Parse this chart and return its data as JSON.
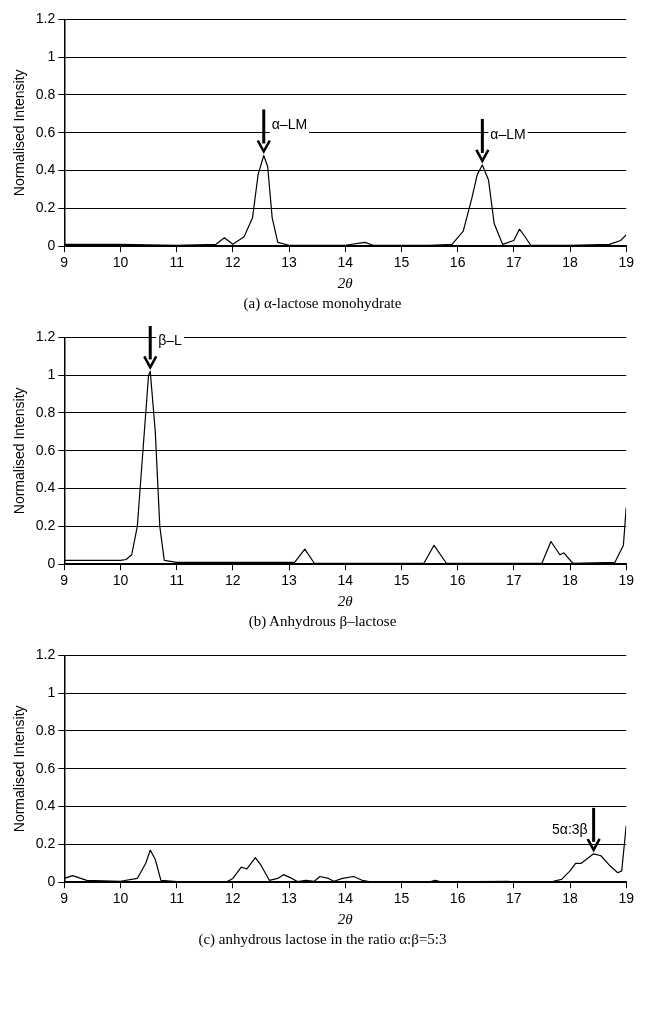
{
  "chart_data": [
    {
      "type": "line",
      "xlabel": "2θ",
      "ylabel": "Normalised Intensity",
      "xlim": [
        9,
        19
      ],
      "xticks": [
        9,
        10,
        11,
        12,
        13,
        14,
        15,
        16,
        17,
        18,
        19
      ],
      "ylim": [
        0,
        1.2
      ],
      "yticks": [
        0,
        0.2,
        0.4,
        0.6,
        0.8,
        1,
        1.2
      ],
      "grid": "y",
      "marker": "none",
      "line_style": "solid",
      "series": [
        {
          "color": "#000000",
          "x": [
            9,
            10,
            11,
            11.7,
            11.85,
            12.0,
            12.2,
            12.35,
            12.45,
            12.55,
            12.62,
            12.7,
            12.8,
            13,
            14,
            14.35,
            14.5,
            15.5,
            15.9,
            16.1,
            16.25,
            16.35,
            16.44,
            16.55,
            16.65,
            16.8,
            17.0,
            17.1,
            17.2,
            17.3,
            18,
            18.7,
            18.9,
            19
          ],
          "values": [
            0.01,
            0.01,
            0.005,
            0.01,
            0.045,
            0.01,
            0.05,
            0.15,
            0.38,
            0.48,
            0.42,
            0.15,
            0.02,
            0.005,
            0.005,
            0.02,
            0.005,
            0.005,
            0.01,
            0.08,
            0.25,
            0.38,
            0.43,
            0.35,
            0.12,
            0.01,
            0.03,
            0.09,
            0.05,
            0.005,
            0.005,
            0.01,
            0.03,
            0.06
          ]
        }
      ],
      "annotations": [
        {
          "text": "α–LM",
          "x": 12.55,
          "y": 0.48
        },
        {
          "text": "α–LM",
          "x": 16.44,
          "y": 0.43
        },
        "(a)  α-lactose monohydrate"
      ]
    },
    {
      "type": "line",
      "xlabel": "2θ",
      "ylabel": "Normalised Intensity",
      "xlim": [
        9,
        19
      ],
      "xticks": [
        9,
        10,
        11,
        12,
        13,
        14,
        15,
        16,
        17,
        18,
        19
      ],
      "ylim": [
        0,
        1.2
      ],
      "yticks": [
        0,
        0.2,
        0.4,
        0.6,
        0.8,
        1,
        1.2
      ],
      "grid": "y",
      "marker": "none",
      "line_style": "solid",
      "series": [
        {
          "color": "#000000",
          "x": [
            9,
            10,
            10.1,
            10.2,
            10.3,
            10.4,
            10.5,
            10.53,
            10.62,
            10.7,
            10.78,
            11,
            13.1,
            13.28,
            13.45,
            15.4,
            15.58,
            15.8,
            17.5,
            17.66,
            17.82,
            17.89,
            18.05,
            18.8,
            18.95,
            19
          ],
          "values": [
            0.02,
            0.02,
            0.025,
            0.05,
            0.2,
            0.6,
            1.0,
            1.02,
            0.7,
            0.2,
            0.02,
            0.01,
            0.01,
            0.08,
            0.005,
            0.005,
            0.1,
            0.005,
            0.005,
            0.12,
            0.05,
            0.06,
            0.005,
            0.01,
            0.1,
            0.3
          ]
        }
      ],
      "annotations": [
        {
          "text": "β–L",
          "x": 10.53,
          "y": 1.02
        },
        "(b)  Anhydrous β–lactose"
      ]
    },
    {
      "type": "line",
      "xlabel": "2θ",
      "ylabel": "Normalised Intensity",
      "xlim": [
        9,
        19
      ],
      "xticks": [
        9,
        10,
        11,
        12,
        13,
        14,
        15,
        16,
        17,
        18,
        19
      ],
      "ylim": [
        0,
        1.2
      ],
      "yticks": [
        0,
        0.2,
        0.4,
        0.6,
        0.8,
        1,
        1.2
      ],
      "grid": "y",
      "marker": "none",
      "line_style": "solid",
      "series": [
        {
          "color": "#000000",
          "x": [
            9,
            9.15,
            9.4,
            10,
            10.3,
            10.45,
            10.53,
            10.62,
            10.72,
            11,
            11.9,
            12.0,
            12.15,
            12.25,
            12.4,
            12.5,
            12.65,
            12.8,
            12.9,
            13.05,
            13.15,
            13.3,
            13.45,
            13.55,
            13.7,
            13.8,
            13.95,
            14.15,
            14.3,
            14.45,
            15.5,
            15.6,
            15.7,
            17.7,
            17.85,
            18.0,
            18.1,
            18.2,
            18.42,
            18.55,
            18.7,
            18.85,
            18.92,
            19
          ],
          "values": [
            0.02,
            0.035,
            0.01,
            0.005,
            0.02,
            0.1,
            0.17,
            0.12,
            0.01,
            0.003,
            0.003,
            0.02,
            0.08,
            0.07,
            0.13,
            0.09,
            0.01,
            0.02,
            0.04,
            0.02,
            0.003,
            0.01,
            0.005,
            0.03,
            0.02,
            0.005,
            0.02,
            0.03,
            0.01,
            0.002,
            0.002,
            0.01,
            0.002,
            0.005,
            0.015,
            0.06,
            0.1,
            0.1,
            0.15,
            0.14,
            0.09,
            0.05,
            0.06,
            0.3
          ]
        }
      ],
      "annotations": [
        {
          "text": "5α:3β",
          "x": 18.42,
          "y": 0.15
        },
        "(c)  anhydrous lactose in the ratio α:β=5:3"
      ]
    }
  ]
}
